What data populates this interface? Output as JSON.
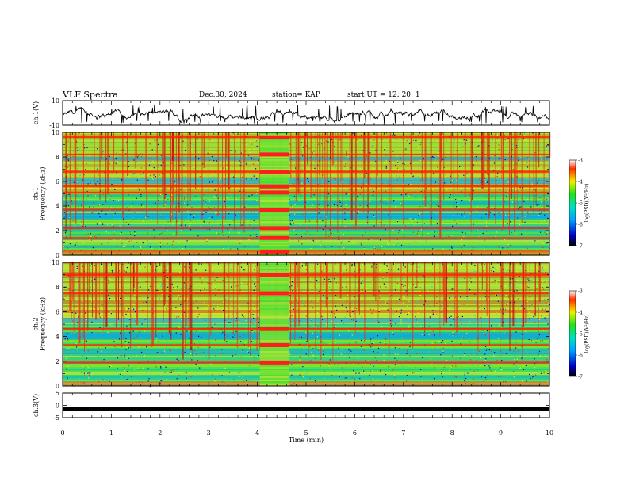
{
  "header": {
    "title": "VLF Spectra",
    "date": "Dec.30, 2024",
    "station": "station= KAP",
    "start_ut": "start  UT  =   12: 20: 1"
  },
  "chart_data": [
    {
      "type": "line",
      "name": "ch1-waveform",
      "ylabel": "ch.1(V)",
      "ylim": [
        -10,
        10
      ],
      "yticks": [
        "10",
        "-10"
      ],
      "xlim": [
        0,
        10
      ],
      "description_values": "noisy waveform mostly between -8 and +4 V"
    },
    {
      "type": "heatmap",
      "name": "ch1-spectrogram",
      "ylabel": "ch.1\nFrequency  (kHz)",
      "ylim": [
        0,
        10
      ],
      "yticks": [
        "0",
        "2",
        "4",
        "6",
        "8",
        "10"
      ],
      "xlim": [
        0,
        10
      ],
      "colorbar": {
        "label": "log(PSD)(V²/Hz)",
        "range": [
          -7,
          -3
        ],
        "ticks": [
          "-3",
          "-4",
          "-5",
          "-6",
          "-7"
        ]
      },
      "bands_khz": [
        0.3,
        1.4,
        2.2,
        3.7,
        5.1,
        5.6,
        6.8,
        8.2,
        9.6
      ],
      "burst_min": [
        4.05,
        4.65
      ]
    },
    {
      "type": "heatmap",
      "name": "ch2-spectrogram",
      "ylabel": "ch.2\nFrequency  (kHz)",
      "ylim": [
        0,
        10
      ],
      "yticks": [
        "0",
        "2",
        "4",
        "6",
        "8",
        "10"
      ],
      "xlim": [
        0,
        10
      ],
      "colorbar": {
        "label": "log(PSD)(V²/Hz)",
        "range": [
          -7,
          -3
        ],
        "ticks": [
          "-3",
          "-4",
          "-5",
          "-6",
          "-7"
        ]
      },
      "bands_khz": [
        1.9,
        3.3,
        4.6,
        7.5,
        9.0
      ],
      "burst_min": [
        4.05,
        4.65
      ]
    },
    {
      "type": "line",
      "name": "ch3-waveform",
      "ylabel": "ch.3(V)",
      "ylim": [
        -5,
        5
      ],
      "yticks": [
        "5",
        "0",
        "-5"
      ],
      "xlim": [
        0,
        10
      ],
      "level_v": -1.5
    }
  ],
  "xaxis": {
    "label": "Time  (min)",
    "ticks": [
      "0",
      "1",
      "2",
      "3",
      "4",
      "5",
      "6",
      "7",
      "8",
      "9",
      "10"
    ]
  }
}
